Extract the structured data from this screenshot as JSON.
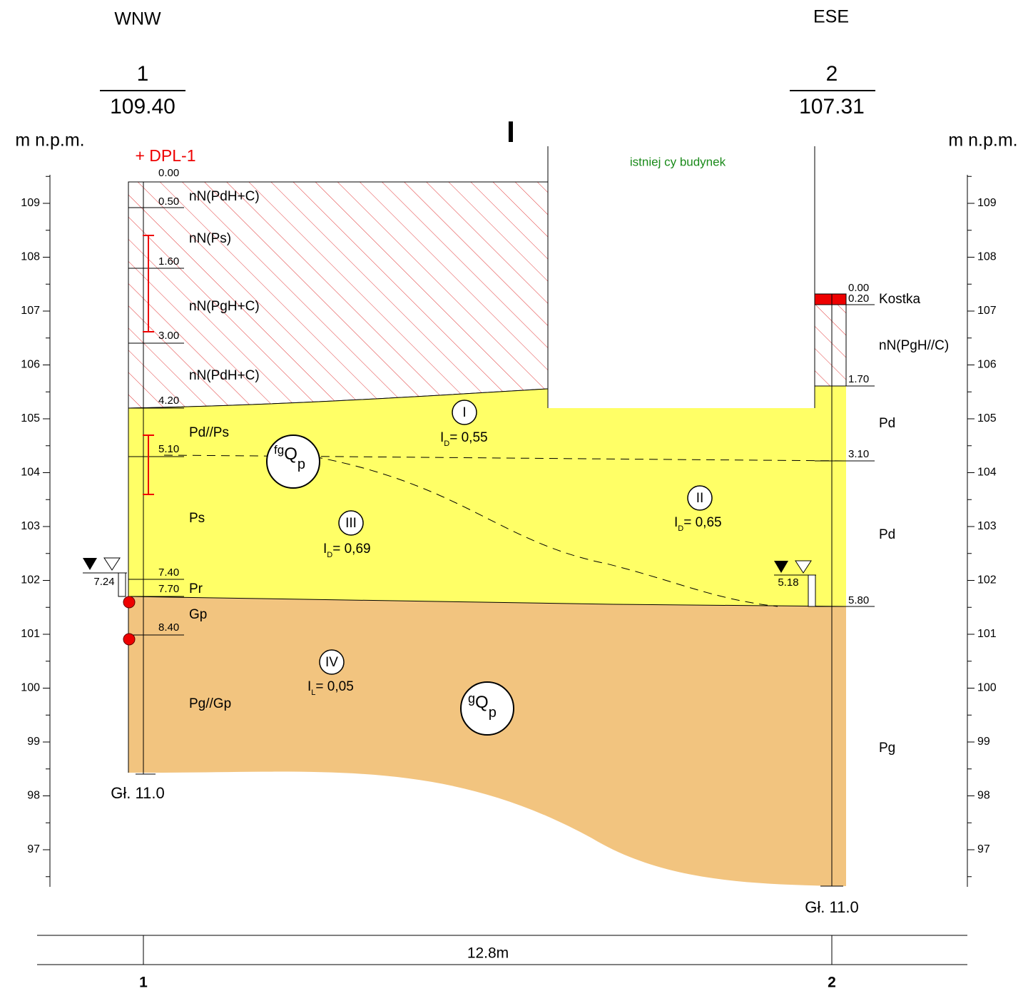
{
  "header": {
    "left_direction": "WNW",
    "right_direction": "ESE",
    "section_label": "I",
    "unit": "m n.p.m."
  },
  "axis_ticks": [
    "109",
    "108",
    "107",
    "106",
    "105",
    "104",
    "103",
    "102",
    "101",
    "100",
    "99",
    "98",
    "97"
  ],
  "building_label": "istniej  cy budynek",
  "boreholes": [
    {
      "number": "1",
      "elevation": "109.40",
      "probe": "+ DPL-1",
      "bottom_label": "Gł. 11.0",
      "water_level": "7.24",
      "depths": [
        "0.00",
        "0.50",
        "1.60",
        "3.00",
        "4.20",
        "5.10",
        "7.40",
        "7.70",
        "8.40"
      ],
      "soils": [
        "nN(PdH+C)",
        "nN(Ps)",
        "nN(PgH+C)",
        "nN(PdH+C)",
        "Pd//Ps",
        "Ps",
        "Pr",
        "Gp",
        "Pg//Gp"
      ]
    },
    {
      "number": "2",
      "elevation": "107.31",
      "bottom_label": "Gł. 11.0",
      "water_level": "5.18",
      "depths": [
        "0.00",
        "0.20",
        "1.70",
        "3.10",
        "5.80"
      ],
      "soils": [
        "Kostka",
        "nN(PgH//C)",
        "Pd",
        "Pd",
        "Pg"
      ]
    }
  ],
  "layers": [
    {
      "id": "I",
      "param": "I",
      "param_sub": "D",
      "value": "= 0,55"
    },
    {
      "id": "II",
      "param": "I",
      "param_sub": "D",
      "value": "= 0,65"
    },
    {
      "id": "III",
      "param": "I",
      "param_sub": "D",
      "value": "= 0,69"
    },
    {
      "id": "IV",
      "param": "I",
      "param_sub": "L",
      "value": "= 0,05"
    }
  ],
  "genesis": [
    {
      "sup": "fg",
      "main": "Q",
      "sub": "p"
    },
    {
      "sup": "g",
      "main": "Q",
      "sub": "p"
    }
  ],
  "distance": "12.8m",
  "bottom_labels": [
    "1",
    "2"
  ]
}
